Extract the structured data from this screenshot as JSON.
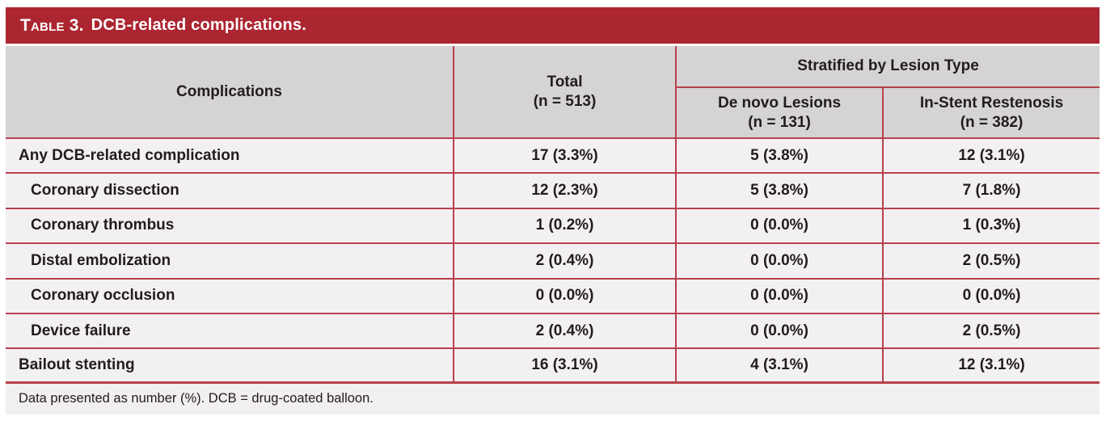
{
  "title": {
    "prefix": "Table 3.",
    "text": "DCB-related complications."
  },
  "header": {
    "complications": "Complications",
    "total_line1": "Total",
    "total_line2": "(n = 513)",
    "group": "Stratified by Lesion Type",
    "de_novo_line1": "De novo Lesions",
    "de_novo_line2": "(n = 131)",
    "isr_line1": "In-Stent Restenosis",
    "isr_line2": "(n = 382)"
  },
  "rows": [
    {
      "label": "Any DCB-related complication",
      "indent": false,
      "total": "17 (3.3%)",
      "de_novo": "5 (3.8%)",
      "isr": "12 (3.1%)"
    },
    {
      "label": "Coronary dissection",
      "indent": true,
      "total": "12 (2.3%)",
      "de_novo": "5 (3.8%)",
      "isr": "7 (1.8%)"
    },
    {
      "label": "Coronary thrombus",
      "indent": true,
      "total": "1 (0.2%)",
      "de_novo": "0 (0.0%)",
      "isr": "1 (0.3%)"
    },
    {
      "label": "Distal embolization",
      "indent": true,
      "total": "2 (0.4%)",
      "de_novo": "0 (0.0%)",
      "isr": "2 (0.5%)"
    },
    {
      "label": "Coronary occlusion",
      "indent": true,
      "total": "0 (0.0%)",
      "de_novo": "0 (0.0%)",
      "isr": "0 (0.0%)"
    },
    {
      "label": "Device failure",
      "indent": true,
      "total": "2 (0.4%)",
      "de_novo": "0 (0.0%)",
      "isr": "2 (0.5%)"
    },
    {
      "label": "Bailout stenting",
      "indent": false,
      "total": "16 (3.1%)",
      "de_novo": "4 (3.1%)",
      "isr": "12 (3.1%)"
    }
  ],
  "footnote": "Data presented as number (%). DCB = drug-coated balloon.",
  "colors": {
    "accent": "#ac2631",
    "line": "#b7424d",
    "header_bg": "#d5d3d4",
    "row_bg": "#f3f0f1",
    "footer_bg": "#f2eff0",
    "text": "#211d1e"
  }
}
